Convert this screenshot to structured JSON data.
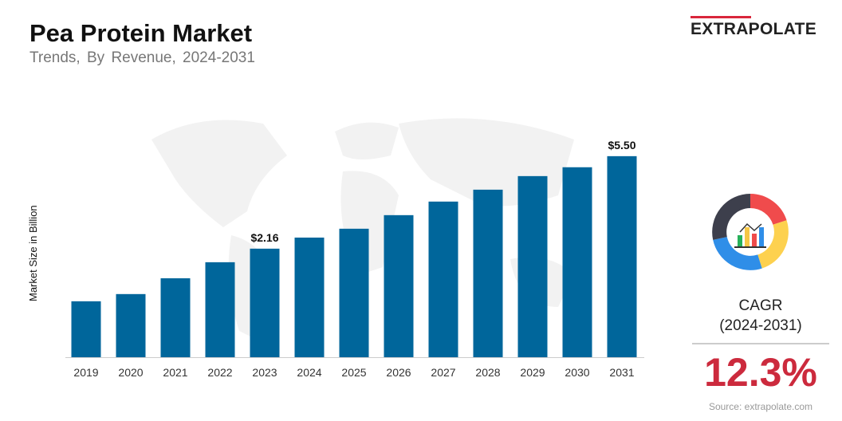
{
  "header": {
    "title": "Pea Protein Market",
    "subtitle": "Trends, By Revenue, 2024-2031",
    "logo": "EXTRAPOLATE"
  },
  "colors": {
    "bar": "#00669b",
    "accent": "#cc2a3d",
    "logo_bar": "#d9263b"
  },
  "chart_data": {
    "type": "bar",
    "title": "Pea Protein Market",
    "ylabel": "Market Size in Billion",
    "xlabel": "",
    "grid": false,
    "categories": [
      "2019",
      "2020",
      "2021",
      "2022",
      "2023",
      "2024",
      "2025",
      "2026",
      "2027",
      "2028",
      "2029",
      "2030",
      "2031"
    ],
    "values": [
      0.26,
      0.52,
      1.09,
      1.67,
      2.16,
      2.56,
      2.88,
      3.37,
      3.86,
      4.29,
      4.78,
      5.1,
      5.5
    ],
    "data_labels": [
      {
        "category": "2023",
        "text": "$2.16"
      },
      {
        "category": "2031",
        "text": "$5.50"
      }
    ]
  },
  "sidebar": {
    "icon": "chart-donut-icon",
    "cagr_label": "CAGR",
    "cagr_period": "(2024-2031)",
    "cagr_value": "12.3%",
    "source": "Source: extrapolate.com"
  }
}
